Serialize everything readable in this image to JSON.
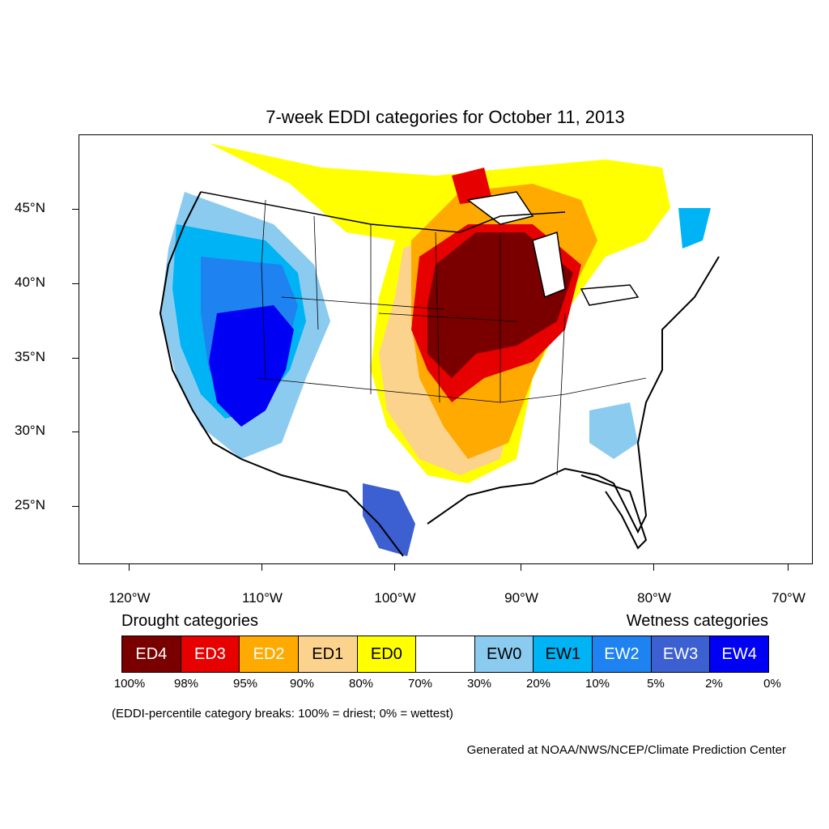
{
  "title": "7-week EDDI categories for October 11, 2013",
  "axes": {
    "latitude_labels": [
      "45°N",
      "40°N",
      "35°N",
      "30°N",
      "25°N"
    ],
    "longitude_labels": [
      "120°W",
      "110°W",
      "100°W",
      "90°W",
      "80°W",
      "70°W"
    ]
  },
  "legend": {
    "drought_title": "Drought categories",
    "wetness_title": "Wetness categories",
    "categories": [
      {
        "label": "ED4",
        "color": "#7a0000",
        "text_color": "#ffffff"
      },
      {
        "label": "ED3",
        "color": "#e60000",
        "text_color": "#ffffff"
      },
      {
        "label": "ED2",
        "color": "#ffaa00",
        "text_color": "#ffffff"
      },
      {
        "label": "ED1",
        "color": "#fcd38d",
        "text_color": "#000000"
      },
      {
        "label": "ED0",
        "color": "#ffff00",
        "text_color": "#000000"
      },
      {
        "label": "",
        "color": "#ffffff",
        "text_color": "#000000"
      },
      {
        "label": "EW0",
        "color": "#8ccbf0",
        "text_color": "#000000"
      },
      {
        "label": "EW1",
        "color": "#00b3f5",
        "text_color": "#000000"
      },
      {
        "label": "EW2",
        "color": "#1e82f0",
        "text_color": "#ffffff"
      },
      {
        "label": "EW3",
        "color": "#3c5fd2",
        "text_color": "#ffffff"
      },
      {
        "label": "EW4",
        "color": "#0000f5",
        "text_color": "#ffffff"
      }
    ],
    "percentiles": [
      "100%",
      "98%",
      "95%",
      "90%",
      "80%",
      "70%",
      "30%",
      "20%",
      "10%",
      "5%",
      "2%",
      "0%"
    ]
  },
  "breaks_note": "(EDDI-percentile category breaks: 100% = driest; 0% = wettest)",
  "credit": "Generated at NOAA/NWS/NCEP/Climate Prediction Center"
}
